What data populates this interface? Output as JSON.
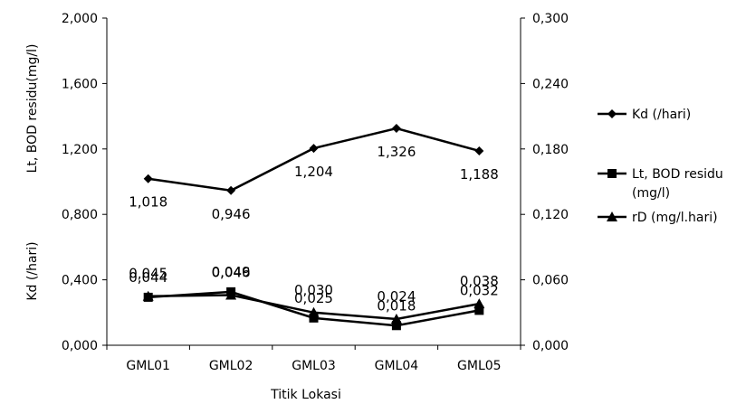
{
  "chart_data": {
    "type": "line",
    "categories": [
      "GML01",
      "GML02",
      "GML03",
      "GML04",
      "GML05"
    ],
    "xlabel": "Titik Lokasi",
    "ylabel_left_top": "Lt, BOD residu(mg/l)",
    "ylabel_left_bottom": "Kd (/hari)",
    "y_left": {
      "min": 0,
      "max": 2,
      "ticks": [
        "0,000",
        "0,400",
        "0,800",
        "1,200",
        "1,600",
        "2,000"
      ]
    },
    "y_right": {
      "min": 0,
      "max": 0.3,
      "ticks": [
        "0,000",
        "0,060",
        "0,120",
        "0,180",
        "0,240",
        "0,300"
      ]
    },
    "grid": false,
    "legend_position": "right",
    "series": [
      {
        "name": "Kd (/hari)",
        "marker": "diamond",
        "axis": "left",
        "values": [
          1.018,
          0.946,
          1.204,
          1.326,
          1.188
        ],
        "labels": [
          "1,018",
          "0,946",
          "1,204",
          "1,326",
          "1,188"
        ]
      },
      {
        "name": "Lt, BOD residu (mg/l)",
        "legend_lines": [
          "Lt, BOD residu",
          "(mg/l)"
        ],
        "marker": "square",
        "axis": "right",
        "values": [
          0.044,
          0.049,
          0.025,
          0.018,
          0.032
        ],
        "labels": [
          "0,044",
          "0,049",
          "0,025",
          "0,018",
          "0,032"
        ]
      },
      {
        "name": "rD (mg/l.hari)",
        "marker": "triangle",
        "axis": "right",
        "values": [
          0.045,
          0.046,
          0.03,
          0.024,
          0.038
        ],
        "labels": [
          "0,045",
          "0,046",
          "0,030",
          "0,024",
          "0,038"
        ]
      }
    ],
    "line_color": "#000000"
  }
}
